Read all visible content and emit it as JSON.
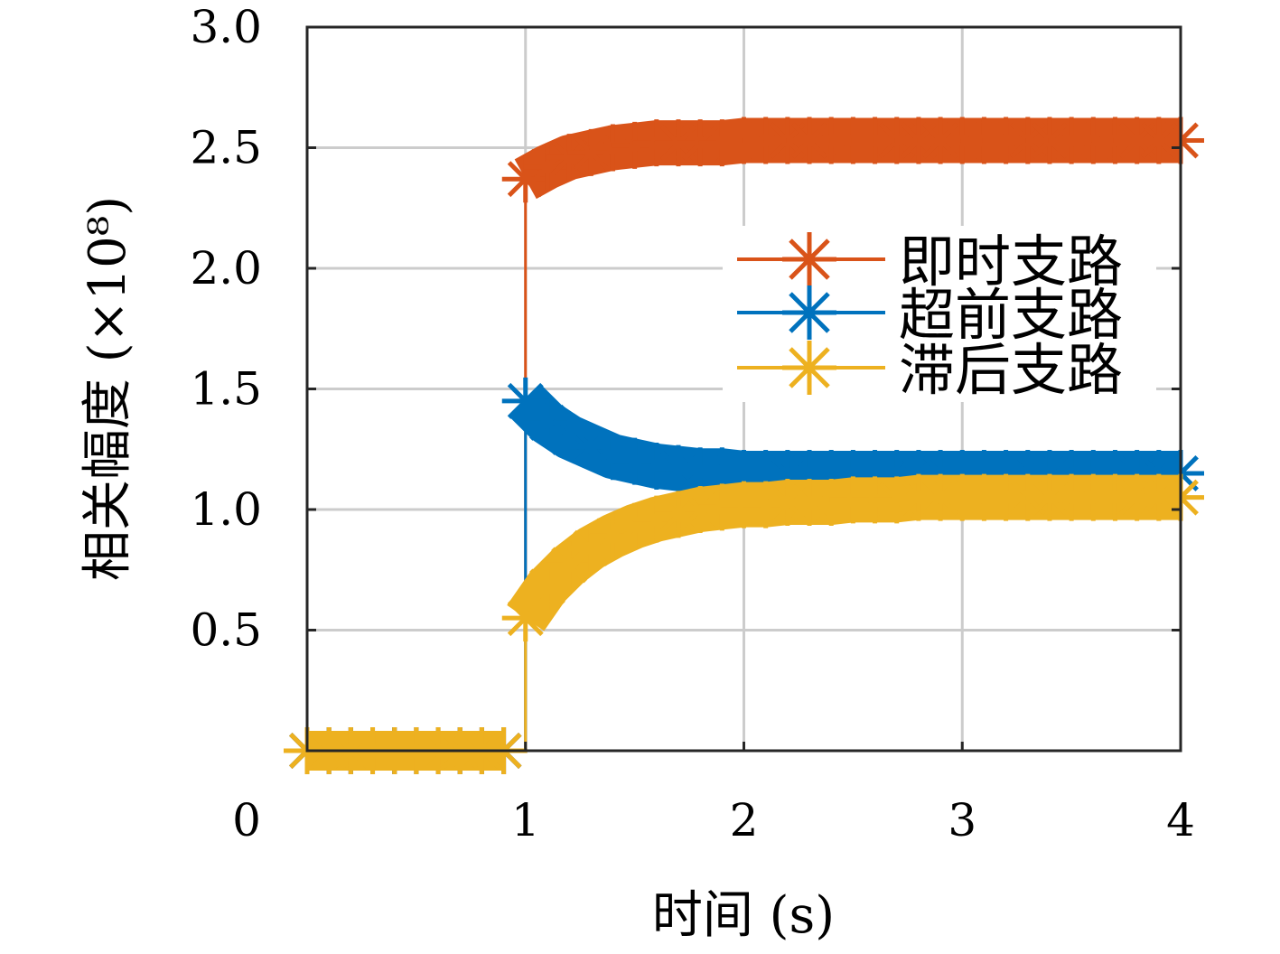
{
  "chart_data": {
    "type": "line",
    "title": "",
    "xlabel": "时间 (s)",
    "ylabel": "相关幅度 (×10⁸)",
    "xlim": [
      0,
      4
    ],
    "ylim": [
      0,
      3
    ],
    "xticks": [
      "0",
      "1",
      "2",
      "3",
      "4"
    ],
    "yticks": [
      "0.5",
      "1.0",
      "1.5",
      "2.0",
      "2.5",
      "3.0"
    ],
    "grid": true,
    "legend_position": "right-middle",
    "x": [
      0,
      0.1,
      0.2,
      0.3,
      0.4,
      0.5,
      0.6,
      0.7,
      0.8,
      0.9,
      1.0,
      1.1,
      1.2,
      1.3,
      1.4,
      1.5,
      1.6,
      1.7,
      1.8,
      1.9,
      2.0,
      2.1,
      2.2,
      2.3,
      2.4,
      2.5,
      2.6,
      2.7,
      2.8,
      2.9,
      3.0,
      3.1,
      3.2,
      3.3,
      3.4,
      3.5,
      3.6,
      3.7,
      3.8,
      3.9,
      4.0
    ],
    "series": [
      {
        "name": "即时支路",
        "color": "#D95319",
        "values": [
          0,
          0,
          0,
          0,
          0,
          0,
          0,
          0,
          0,
          0,
          2.37,
          2.42,
          2.46,
          2.48,
          2.5,
          2.51,
          2.52,
          2.52,
          2.52,
          2.52,
          2.53,
          2.53,
          2.53,
          2.53,
          2.53,
          2.53,
          2.53,
          2.53,
          2.53,
          2.53,
          2.53,
          2.53,
          2.53,
          2.53,
          2.53,
          2.53,
          2.53,
          2.53,
          2.53,
          2.53,
          2.53
        ]
      },
      {
        "name": "超前支路",
        "color": "#0072BD",
        "values": [
          0,
          0,
          0,
          0,
          0,
          0,
          0,
          0,
          0,
          0,
          1.45,
          1.36,
          1.3,
          1.26,
          1.22,
          1.2,
          1.18,
          1.17,
          1.16,
          1.16,
          1.15,
          1.15,
          1.15,
          1.15,
          1.15,
          1.15,
          1.15,
          1.15,
          1.15,
          1.15,
          1.15,
          1.15,
          1.15,
          1.15,
          1.15,
          1.15,
          1.15,
          1.15,
          1.15,
          1.15,
          1.15
        ]
      },
      {
        "name": "滞后支路",
        "color": "#EDB120",
        "values": [
          0,
          0,
          0,
          0,
          0,
          0,
          0,
          0,
          0,
          0,
          0.55,
          0.68,
          0.77,
          0.84,
          0.89,
          0.93,
          0.96,
          0.98,
          1.0,
          1.01,
          1.02,
          1.02,
          1.03,
          1.03,
          1.03,
          1.04,
          1.04,
          1.04,
          1.05,
          1.05,
          1.05,
          1.05,
          1.05,
          1.05,
          1.05,
          1.05,
          1.05,
          1.05,
          1.05,
          1.05,
          1.05
        ]
      }
    ]
  }
}
